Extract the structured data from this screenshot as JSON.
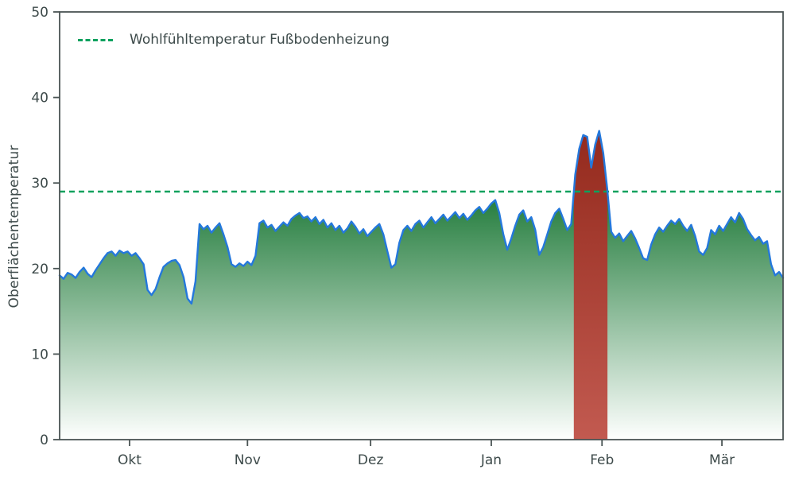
{
  "chart_data": {
    "type": "area",
    "title": "",
    "xlabel": "",
    "ylabel": "Oberflächentemperatur",
    "ylim": [
      0,
      50
    ],
    "grid": false,
    "legend_position": "upper-left",
    "y_ticks": [
      0,
      10,
      20,
      30,
      40,
      50
    ],
    "x_ticks": [
      {
        "label": "Okt",
        "day": 17.5
      },
      {
        "label": "Nov",
        "day": 47.0
      },
      {
        "label": "Dez",
        "day": 77.8
      },
      {
        "label": "Jan",
        "day": 108.0
      },
      {
        "label": "Feb",
        "day": 135.7
      },
      {
        "label": "Mär",
        "day": 165.7
      }
    ],
    "threshold": {
      "value": 29,
      "label": "Wohlfühltemperatur Fußbodenheizung",
      "style": "dashed"
    },
    "colors": {
      "threshold": "#0ba15e",
      "line": "#2478dc",
      "fill_top": "#1f7a39",
      "fill_bottom": "#fefffe",
      "overheat_top": "#93291c",
      "overheat_bottom": "#c25a50",
      "axis": "#4a5454",
      "text": "#3d4a4a"
    },
    "series": [
      {
        "name": "Oberflächentemperatur",
        "values": [
          19.2,
          18.8,
          19.5,
          19.3,
          18.9,
          19.6,
          20.1,
          19.4,
          19.0,
          19.8,
          20.5,
          21.2,
          21.8,
          22.0,
          21.5,
          22.1,
          21.8,
          22.0,
          21.5,
          21.8,
          21.2,
          20.5,
          17.5,
          16.9,
          17.6,
          19.0,
          20.2,
          20.6,
          20.9,
          21.0,
          20.4,
          19.0,
          16.5,
          15.9,
          18.5,
          25.2,
          24.6,
          25.0,
          24.2,
          24.8,
          25.3,
          24.0,
          22.5,
          20.5,
          20.2,
          20.6,
          20.3,
          20.8,
          20.4,
          21.5,
          25.3,
          25.6,
          24.8,
          25.1,
          24.4,
          24.9,
          25.4,
          25.0,
          25.8,
          26.2,
          26.5,
          25.9,
          26.1,
          25.5,
          26.0,
          25.2,
          25.7,
          24.8,
          25.3,
          24.5,
          25.0,
          24.2,
          24.7,
          25.5,
          24.9,
          24.1,
          24.6,
          23.8,
          24.3,
          24.8,
          25.2,
          24.0,
          22.0,
          20.1,
          20.5,
          23.0,
          24.5,
          25.0,
          24.4,
          25.2,
          25.6,
          24.8,
          25.4,
          26.0,
          25.3,
          25.8,
          26.3,
          25.6,
          26.1,
          26.6,
          25.9,
          26.4,
          25.7,
          26.2,
          26.8,
          27.2,
          26.5,
          27.0,
          27.6,
          28.0,
          26.5,
          24.0,
          22.2,
          23.5,
          25.0,
          26.3,
          26.8,
          25.5,
          26.0,
          24.5,
          21.6,
          22.5,
          24.0,
          25.5,
          26.5,
          27.0,
          25.8,
          24.5,
          25.2,
          31.0,
          34.0,
          35.6,
          35.4,
          31.8,
          34.5,
          36.1,
          33.5,
          29.3,
          24.3,
          23.6,
          24.1,
          23.2,
          23.8,
          24.4,
          23.5,
          22.4,
          21.2,
          21.0,
          22.8,
          24.0,
          24.8,
          24.3,
          25.0,
          25.6,
          25.2,
          25.8,
          25.0,
          24.4,
          25.1,
          23.8,
          22.0,
          21.6,
          22.4,
          24.5,
          24.0,
          25.0,
          24.4,
          25.2,
          26.0,
          25.4,
          26.5,
          25.8,
          24.6,
          23.9,
          23.3,
          23.7,
          22.9,
          23.2,
          20.5,
          19.2,
          19.6,
          18.9
        ]
      }
    ]
  }
}
